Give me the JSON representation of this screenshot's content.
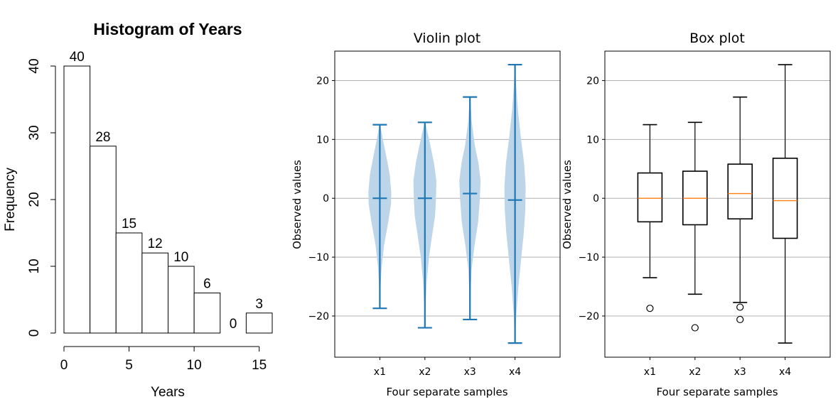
{
  "colors": {
    "violin_fill": "#bcd5e8",
    "violin_line": "#1f77b4",
    "box_median": "#ff7f0e",
    "grid": "#b0b0b0",
    "axis": "#000000"
  },
  "chart_data": [
    {
      "type": "bar",
      "subtype": "histogram",
      "title": "Histogram of Years",
      "xlabel": "Years",
      "ylabel": "Frequency",
      "bins": [
        [
          0,
          2
        ],
        [
          2,
          4
        ],
        [
          4,
          6
        ],
        [
          6,
          8
        ],
        [
          8,
          10
        ],
        [
          10,
          12
        ],
        [
          12,
          14
        ],
        [
          14,
          16
        ]
      ],
      "values": [
        40,
        28,
        15,
        12,
        10,
        6,
        0,
        3
      ],
      "value_labels": [
        "40",
        "28",
        "15",
        "12",
        "10",
        "6",
        "0",
        "3"
      ],
      "xlim": [
        0,
        16
      ],
      "ylim": [
        0,
        40
      ],
      "xticks": [
        0,
        5,
        10,
        15
      ],
      "xtick_labels": [
        "0",
        "5",
        "10",
        "15"
      ],
      "yticks": [
        0,
        10,
        20,
        30,
        40
      ],
      "ytick_labels": [
        "0",
        "10",
        "20",
        "30",
        "40"
      ],
      "grid": false
    },
    {
      "type": "violin",
      "title": "Violin plot",
      "xlabel": "Four separate samples",
      "ylabel": "Observed values",
      "categories": [
        "x1",
        "x2",
        "x3",
        "x4"
      ],
      "ylim": [
        -27,
        25
      ],
      "yticks": [
        -20,
        -10,
        0,
        10,
        20
      ],
      "ytick_labels": [
        "−20",
        "−10",
        "0",
        "10",
        "20"
      ],
      "grid": "y",
      "series": [
        {
          "min": -18.7,
          "max": 12.5,
          "mean": 0.0,
          "density": [
            [
              -18.7,
              0.02
            ],
            [
              -15,
              0.06
            ],
            [
              -12,
              0.14
            ],
            [
              -8,
              0.35
            ],
            [
              -4,
              0.7
            ],
            [
              -1,
              0.92
            ],
            [
              1,
              0.95
            ],
            [
              4,
              0.82
            ],
            [
              7,
              0.55
            ],
            [
              10,
              0.25
            ],
            [
              12.5,
              0.03
            ]
          ]
        },
        {
          "min": -22.0,
          "max": 12.9,
          "mean": 0.0,
          "density": [
            [
              -22,
              0.02
            ],
            [
              -18,
              0.06
            ],
            [
              -14,
              0.16
            ],
            [
              -10,
              0.34
            ],
            [
              -6,
              0.62
            ],
            [
              -3,
              0.84
            ],
            [
              0,
              0.92
            ],
            [
              3,
              0.95
            ],
            [
              6,
              0.75
            ],
            [
              9,
              0.45
            ],
            [
              12.9,
              0.03
            ]
          ]
        },
        {
          "min": -20.6,
          "max": 17.2,
          "mean": 0.8,
          "density": [
            [
              -20.6,
              0.02
            ],
            [
              -16,
              0.05
            ],
            [
              -12,
              0.14
            ],
            [
              -8,
              0.38
            ],
            [
              -4,
              0.68
            ],
            [
              0,
              0.82
            ],
            [
              3,
              0.88
            ],
            [
              6,
              0.7
            ],
            [
              9,
              0.4
            ],
            [
              13,
              0.15
            ],
            [
              17.2,
              0.02
            ]
          ]
        },
        {
          "min": -24.6,
          "max": 22.7,
          "mean": -0.3,
          "density": [
            [
              -24.6,
              0.02
            ],
            [
              -20,
              0.1
            ],
            [
              -15,
              0.28
            ],
            [
              -10,
              0.52
            ],
            [
              -6,
              0.72
            ],
            [
              -2,
              0.85
            ],
            [
              2,
              0.88
            ],
            [
              6,
              0.75
            ],
            [
              10,
              0.5
            ],
            [
              15,
              0.24
            ],
            [
              19,
              0.1
            ],
            [
              22.7,
              0.02
            ]
          ]
        }
      ]
    },
    {
      "type": "box",
      "title": "Box plot",
      "xlabel": "Four separate samples",
      "ylabel": "Observed values",
      "categories": [
        "x1",
        "x2",
        "x3",
        "x4"
      ],
      "ylim": [
        -27,
        25
      ],
      "yticks": [
        -20,
        -10,
        0,
        10,
        20
      ],
      "ytick_labels": [
        "−20",
        "−10",
        "0",
        "10",
        "20"
      ],
      "grid": "y",
      "series": [
        {
          "whisker_low": -13.5,
          "q1": -4.0,
          "median": 0.0,
          "q3": 4.3,
          "whisker_high": 12.5,
          "fliers": [
            -18.7
          ]
        },
        {
          "whisker_low": -16.3,
          "q1": -4.5,
          "median": 0.0,
          "q3": 4.6,
          "whisker_high": 12.9,
          "fliers": [
            -22.0
          ]
        },
        {
          "whisker_low": -17.7,
          "q1": -3.5,
          "median": 0.8,
          "q3": 5.8,
          "whisker_high": 17.2,
          "fliers": [
            -18.5,
            -20.6
          ]
        },
        {
          "whisker_low": -24.6,
          "q1": -6.8,
          "median": -0.4,
          "q3": 6.8,
          "whisker_high": 22.7,
          "fliers": []
        }
      ]
    }
  ]
}
